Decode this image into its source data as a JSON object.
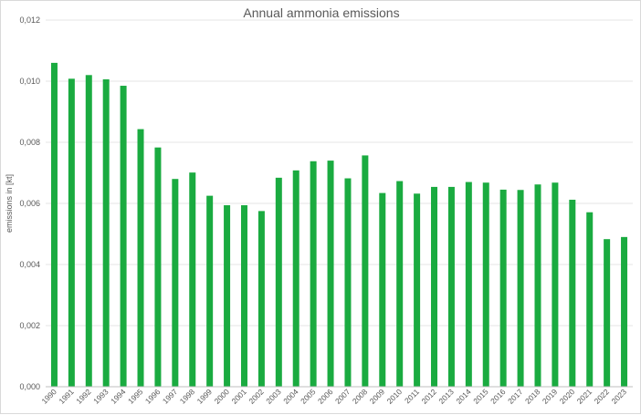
{
  "chart_data": {
    "type": "bar",
    "title": "Annual ammonia emissions",
    "xlabel": "",
    "ylabel": "emissions in [kt]",
    "ylim": [
      0,
      0.012
    ],
    "yticks": [
      "0,000",
      "0,002",
      "0,004",
      "0,006",
      "0,008",
      "0,010",
      "0,012"
    ],
    "ytick_values": [
      0,
      0.002,
      0.004,
      0.006,
      0.008,
      0.01,
      0.012
    ],
    "grid": true,
    "bar_color": "#1aab40",
    "categories": [
      "1990",
      "1991",
      "1992",
      "1993",
      "1994",
      "1995",
      "1996",
      "1997",
      "1998",
      "1999",
      "2000",
      "2001",
      "2002",
      "2003",
      "2004",
      "2005",
      "2006",
      "2007",
      "2008",
      "2009",
      "2010",
      "2011",
      "2012",
      "2013",
      "2014",
      "2015",
      "2016",
      "2017",
      "2018",
      "2019",
      "2020",
      "2021",
      "2022",
      "2023"
    ],
    "values": [
      0.0106,
      0.01008,
      0.0102,
      0.01006,
      0.00985,
      0.00843,
      0.00783,
      0.0068,
      0.00701,
      0.00625,
      0.00594,
      0.00594,
      0.00575,
      0.00684,
      0.00708,
      0.00738,
      0.0074,
      0.00682,
      0.00757,
      0.00634,
      0.00673,
      0.00632,
      0.00654,
      0.00654,
      0.0067,
      0.00668,
      0.00645,
      0.00644,
      0.00662,
      0.00668,
      0.00612,
      0.00571,
      0.00483,
      0.0049
    ]
  }
}
